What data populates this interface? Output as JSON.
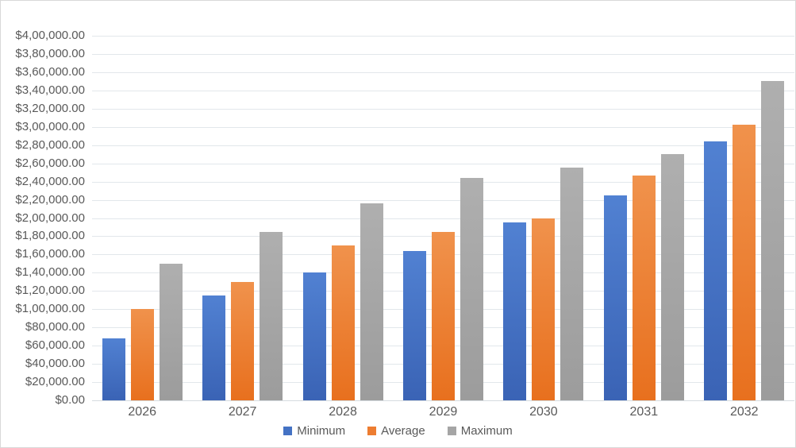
{
  "chart": {
    "background": "#FFFFFF",
    "border_color": "#D9D9D9",
    "gridline_color": "#E2E7EB",
    "axis_line_color": "#D5DBE0",
    "text_color": "#595959"
  },
  "chart_data": {
    "type": "bar",
    "title": "",
    "xlabel": "",
    "ylabel": "",
    "grid": true,
    "legend_position": "bottom",
    "ylim": [
      0,
      400000
    ],
    "ytick_step": 20000,
    "categories": [
      "2026",
      "2027",
      "2028",
      "2029",
      "2030",
      "2031",
      "2032"
    ],
    "series": [
      {
        "name": "Minimum",
        "color": "#4472C4",
        "color_top": "#5181D2",
        "color_bottom": "#3A63B5",
        "values": [
          68000,
          115000,
          140000,
          164000,
          195000,
          225000,
          284000
        ]
      },
      {
        "name": "Average",
        "color": "#ED7D31",
        "color_top": "#F0924C",
        "color_bottom": "#E8701E",
        "values": [
          100000,
          130000,
          170000,
          185000,
          200000,
          247000,
          302000
        ]
      },
      {
        "name": "Maximum",
        "color": "#A5A5A5",
        "color_top": "#AFAFAF",
        "color_bottom": "#9C9C9C",
        "values": [
          150000,
          185000,
          216000,
          244000,
          255000,
          270000,
          350000
        ]
      }
    ],
    "ytick_labels_top_to_bottom": [
      "$4,00,000.00",
      "$3,80,000.00",
      "$3,60,000.00",
      "$3,40,000.00",
      "$3,20,000.00",
      "$3,00,000.00",
      "$2,80,000.00",
      "$2,60,000.00",
      "$2,40,000.00",
      "$2,20,000.00",
      "$2,00,000.00",
      "$1,80,000.00",
      "$1,60,000.00",
      "$1,40,000.00",
      "$1,20,000.00",
      "$1,00,000.00",
      "$80,000.00",
      "$60,000.00",
      "$40,000.00",
      "$20,000.00",
      "$0.00"
    ]
  }
}
